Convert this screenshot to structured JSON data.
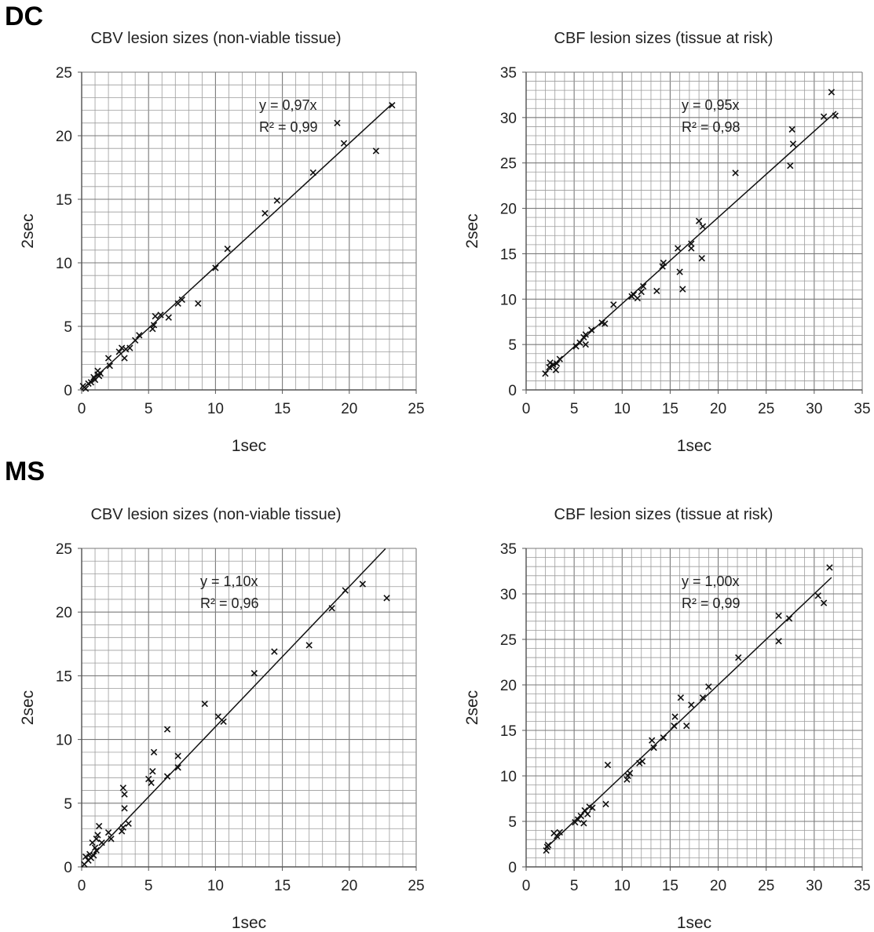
{
  "section_labels": {
    "dc": "DC",
    "ms": "MS"
  },
  "chart_data": [
    {
      "type": "scatter",
      "title": "CBV lesion sizes (non-viable tissue)",
      "xlabel": "1sec",
      "ylabel": "2sec",
      "xlim": [
        0,
        25
      ],
      "ylim": [
        0,
        25
      ],
      "xticks": [
        "0",
        "5",
        "10",
        "15",
        "20",
        "25"
      ],
      "yticks": [
        "0",
        "5",
        "10",
        "15",
        "20",
        "25"
      ],
      "minor_step": 1,
      "grid": true,
      "marker": "x",
      "trendline": {
        "slope": 0.97,
        "equation": "y = 0,97x",
        "r2": "R² = 0,99",
        "x_end": 23.2
      },
      "points": [
        [
          0.1,
          0.3
        ],
        [
          0.2,
          0.2
        ],
        [
          0.3,
          0.1
        ],
        [
          0.5,
          0.5
        ],
        [
          0.7,
          0.6
        ],
        [
          0.9,
          1.0
        ],
        [
          1.0,
          0.8
        ],
        [
          1.2,
          1.2
        ],
        [
          1.2,
          1.5
        ],
        [
          1.3,
          1.1
        ],
        [
          1.4,
          1.3
        ],
        [
          2.0,
          2.5
        ],
        [
          2.1,
          1.9
        ],
        [
          2.8,
          3.0
        ],
        [
          3.0,
          3.3
        ],
        [
          3.2,
          2.5
        ],
        [
          3.3,
          3.2
        ],
        [
          3.6,
          3.3
        ],
        [
          4.0,
          3.9
        ],
        [
          4.3,
          4.3
        ],
        [
          5.3,
          4.8
        ],
        [
          5.4,
          5.1
        ],
        [
          5.5,
          5.8
        ],
        [
          5.9,
          5.9
        ],
        [
          6.5,
          5.7
        ],
        [
          7.2,
          6.8
        ],
        [
          7.5,
          7.1
        ],
        [
          8.7,
          6.8
        ],
        [
          10.0,
          9.6
        ],
        [
          10.9,
          11.1
        ],
        [
          13.7,
          13.9
        ],
        [
          14.6,
          14.9
        ],
        [
          17.3,
          17.1
        ],
        [
          19.1,
          21.0
        ],
        [
          19.6,
          19.4
        ],
        [
          22.0,
          18.8
        ],
        [
          23.2,
          22.4
        ]
      ]
    },
    {
      "type": "scatter",
      "title": "CBF lesion sizes (tissue at risk)",
      "xlabel": "1sec",
      "ylabel": "2sec",
      "xlim": [
        0,
        35
      ],
      "ylim": [
        0,
        35
      ],
      "xticks": [
        "0",
        "5",
        "10",
        "15",
        "20",
        "25",
        "30",
        "35"
      ],
      "yticks": [
        "0",
        "5",
        "10",
        "15",
        "20",
        "25",
        "30",
        "35"
      ],
      "minor_step": 1,
      "grid": true,
      "marker": "x",
      "trendline": {
        "slope": 0.95,
        "x_start": 2,
        "equation": "y = 0,95x",
        "r2": "R² = 0,98",
        "x_end": 32.3
      },
      "points": [
        [
          2.0,
          1.8
        ],
        [
          2.4,
          2.5
        ],
        [
          2.5,
          3.0
        ],
        [
          2.8,
          2.8
        ],
        [
          3.1,
          2.2
        ],
        [
          3.2,
          2.9
        ],
        [
          3.5,
          3.4
        ],
        [
          5.2,
          4.8
        ],
        [
          5.6,
          5.2
        ],
        [
          6.0,
          5.8
        ],
        [
          6.2,
          6.1
        ],
        [
          6.2,
          5.0
        ],
        [
          6.8,
          6.6
        ],
        [
          7.9,
          7.4
        ],
        [
          8.2,
          7.3
        ],
        [
          9.1,
          9.4
        ],
        [
          11.0,
          10.3
        ],
        [
          11.2,
          10.5
        ],
        [
          11.6,
          10.1
        ],
        [
          12.0,
          10.8
        ],
        [
          12.2,
          11.4
        ],
        [
          13.6,
          10.9
        ],
        [
          14.2,
          13.6
        ],
        [
          14.3,
          14.0
        ],
        [
          15.8,
          15.6
        ],
        [
          16.0,
          13.0
        ],
        [
          16.3,
          11.1
        ],
        [
          17.2,
          15.6
        ],
        [
          17.2,
          16.1
        ],
        [
          18.0,
          18.6
        ],
        [
          18.4,
          18.0
        ],
        [
          18.3,
          14.5
        ],
        [
          21.8,
          23.9
        ],
        [
          27.5,
          24.7
        ],
        [
          27.7,
          28.7
        ],
        [
          27.8,
          27.1
        ],
        [
          31.0,
          30.1
        ],
        [
          31.8,
          32.8
        ],
        [
          32.2,
          30.2
        ]
      ]
    },
    {
      "type": "scatter",
      "title": "CBV lesion sizes (non-viable tissue)",
      "xlabel": "1sec",
      "ylabel": "2sec",
      "xlim": [
        0,
        25
      ],
      "ylim": [
        0,
        25
      ],
      "xticks": [
        "0",
        "5",
        "10",
        "15",
        "20",
        "25"
      ],
      "yticks": [
        "0",
        "5",
        "10",
        "15",
        "20",
        "25"
      ],
      "minor_step": 1,
      "grid": true,
      "marker": "x",
      "trendline": {
        "slope": 1.1,
        "equation": "y = 1,10x",
        "r2": "R² = 0,96",
        "x_end": 22.7
      },
      "points": [
        [
          0.2,
          0.2
        ],
        [
          0.3,
          0.8
        ],
        [
          0.5,
          0.5
        ],
        [
          0.6,
          1.0
        ],
        [
          0.7,
          0.7
        ],
        [
          0.8,
          1.9
        ],
        [
          0.9,
          0.9
        ],
        [
          1.0,
          1.5
        ],
        [
          1.1,
          2.2
        ],
        [
          1.1,
          1.3
        ],
        [
          1.2,
          2.5
        ],
        [
          1.3,
          3.2
        ],
        [
          1.5,
          1.9
        ],
        [
          2.0,
          2.7
        ],
        [
          2.2,
          2.2
        ],
        [
          3.0,
          2.8
        ],
        [
          3.1,
          3.1
        ],
        [
          3.1,
          6.2
        ],
        [
          3.2,
          5.7
        ],
        [
          3.2,
          4.6
        ],
        [
          3.5,
          3.4
        ],
        [
          5.0,
          6.9
        ],
        [
          5.2,
          6.6
        ],
        [
          5.3,
          7.5
        ],
        [
          5.4,
          9.0
        ],
        [
          6.4,
          7.1
        ],
        [
          6.4,
          10.8
        ],
        [
          7.2,
          7.8
        ],
        [
          7.2,
          8.7
        ],
        [
          9.2,
          12.8
        ],
        [
          10.2,
          11.8
        ],
        [
          10.6,
          11.4
        ],
        [
          12.9,
          15.2
        ],
        [
          14.4,
          16.9
        ],
        [
          17.0,
          17.4
        ],
        [
          18.7,
          20.3
        ],
        [
          19.7,
          21.7
        ],
        [
          21.0,
          22.2
        ],
        [
          22.8,
          21.1
        ]
      ]
    },
    {
      "type": "scatter",
      "title": "CBF lesion sizes (tissue at risk)",
      "xlabel": "1sec",
      "ylabel": "2sec",
      "xlim": [
        0,
        35
      ],
      "ylim": [
        0,
        35
      ],
      "xticks": [
        "0",
        "5",
        "10",
        "15",
        "20",
        "25",
        "30",
        "35"
      ],
      "yticks": [
        "0",
        "5",
        "10",
        "15",
        "20",
        "25",
        "30",
        "35"
      ],
      "minor_step": 1,
      "grid": true,
      "marker": "x",
      "trendline": {
        "slope": 1.0,
        "x_start": 2,
        "equation": "y = 1,00x",
        "r2": "R² = 0,99",
        "x_end": 31.8
      },
      "points": [
        [
          2.1,
          1.8
        ],
        [
          2.2,
          2.2
        ],
        [
          2.3,
          2.4
        ],
        [
          2.9,
          3.7
        ],
        [
          3.2,
          3.4
        ],
        [
          3.5,
          3.8
        ],
        [
          5.1,
          4.9
        ],
        [
          5.4,
          5.2
        ],
        [
          5.7,
          5.6
        ],
        [
          6.0,
          4.8
        ],
        [
          6.1,
          6.2
        ],
        [
          6.4,
          5.8
        ],
        [
          6.6,
          6.6
        ],
        [
          6.9,
          6.5
        ],
        [
          8.3,
          6.9
        ],
        [
          8.5,
          11.2
        ],
        [
          10.5,
          9.6
        ],
        [
          10.6,
          10.0
        ],
        [
          10.8,
          10.3
        ],
        [
          11.8,
          11.4
        ],
        [
          12.1,
          11.6
        ],
        [
          13.1,
          13.9
        ],
        [
          13.3,
          13.1
        ],
        [
          14.3,
          14.2
        ],
        [
          15.4,
          15.5
        ],
        [
          15.5,
          16.5
        ],
        [
          16.1,
          18.6
        ],
        [
          16.7,
          15.5
        ],
        [
          17.2,
          17.8
        ],
        [
          18.4,
          18.6
        ],
        [
          19.0,
          19.8
        ],
        [
          22.1,
          23.0
        ],
        [
          26.3,
          24.8
        ],
        [
          26.3,
          27.6
        ],
        [
          27.4,
          27.3
        ],
        [
          30.4,
          29.8
        ],
        [
          31.0,
          29.0
        ],
        [
          31.6,
          32.9
        ]
      ]
    }
  ]
}
